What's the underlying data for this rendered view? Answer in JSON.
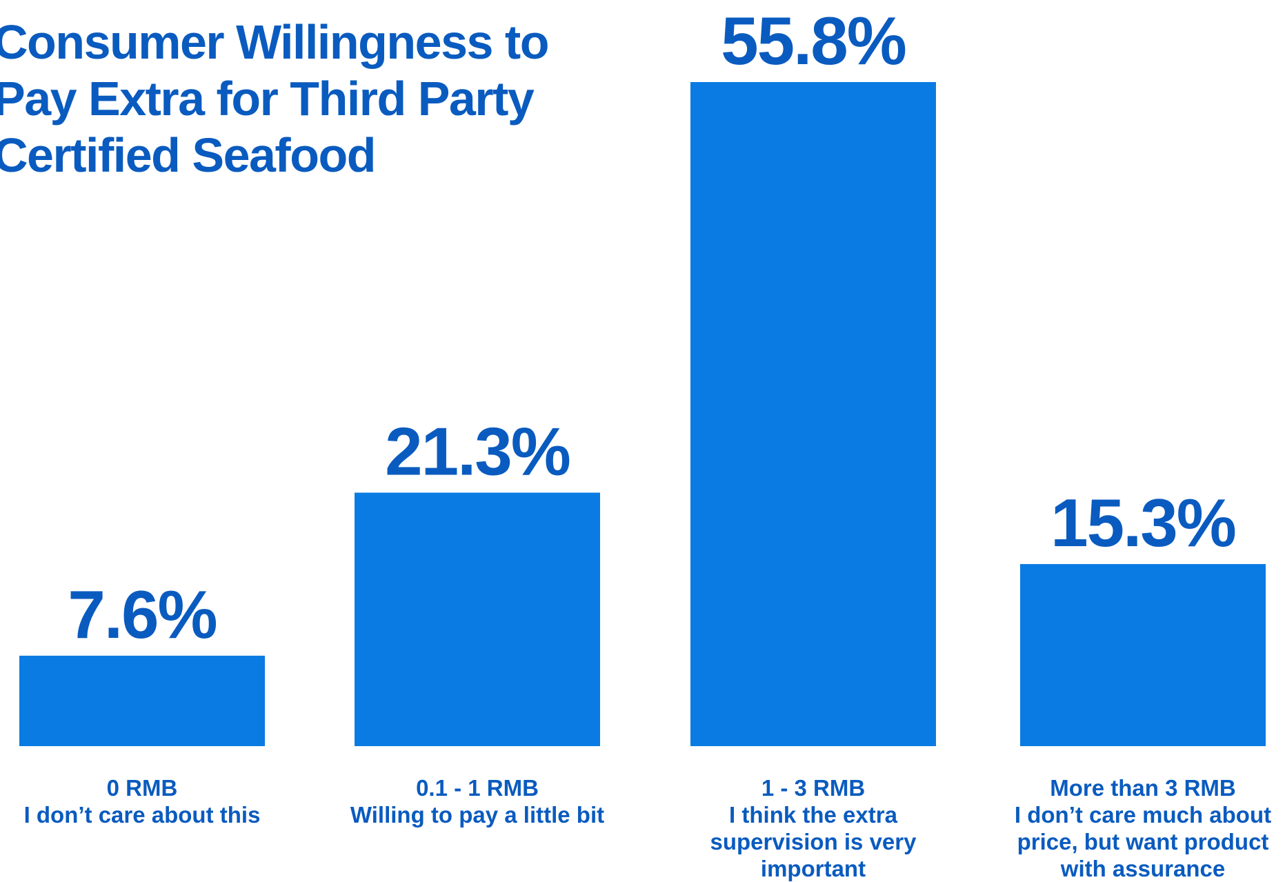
{
  "chart_data": {
    "type": "bar",
    "title": "Consumer Willingness to Pay Extra for Third Party Certified Seafood",
    "categories": [
      {
        "range": "0 RMB",
        "description": "I don’t care about this"
      },
      {
        "range": "0.1 - 1 RMB",
        "description": "Willing to pay a little bit"
      },
      {
        "range": "1 - 3 RMB",
        "description": "I think the extra supervision is very important"
      },
      {
        "range": "More than 3 RMB",
        "description": "I don’t care much about price, but want product with assurance"
      }
    ],
    "values": [
      7.6,
      21.3,
      55.8,
      15.3
    ],
    "value_labels": [
      "7.6%",
      "21.3%",
      "55.8%",
      "15.3%"
    ],
    "unit": "%",
    "xlabel": "",
    "ylabel": "",
    "ylim": [
      0,
      55.8
    ],
    "grid": false,
    "legend": "none",
    "bar_color": "#0a7be2",
    "text_color": "#0a5bbf"
  }
}
